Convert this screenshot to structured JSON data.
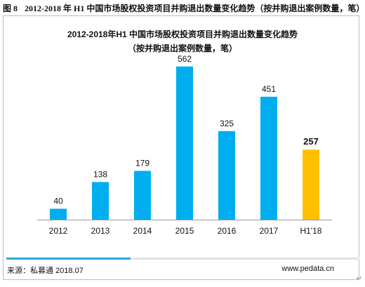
{
  "caption": {
    "number": "图 8",
    "text": "2012-2018 年 H1 中国市场股权投资项目并购退出数量变化趋势（按并购退出案例数量，笔）"
  },
  "chart_data": {
    "type": "bar",
    "title": "2012-2018年H1 中国市场股权投资项目并购退出数量变化趋势",
    "subtitle": "（按并购退出案例数量，笔）",
    "categories": [
      "2012",
      "2013",
      "2014",
      "2015",
      "2016",
      "2017",
      "H1'18"
    ],
    "values": [
      40,
      138,
      179,
      562,
      325,
      451,
      257
    ],
    "ylim": [
      0,
      600
    ],
    "grid": false,
    "legend": "none",
    "colors": {
      "bar": "#00aeef",
      "highlight_bar": "#ffc000",
      "highlight_index": 6,
      "axis": "#999999"
    }
  },
  "footer": {
    "source": "来源：私募通 2018.07",
    "site": "www.pedata.cn",
    "return_mark": "↵"
  }
}
